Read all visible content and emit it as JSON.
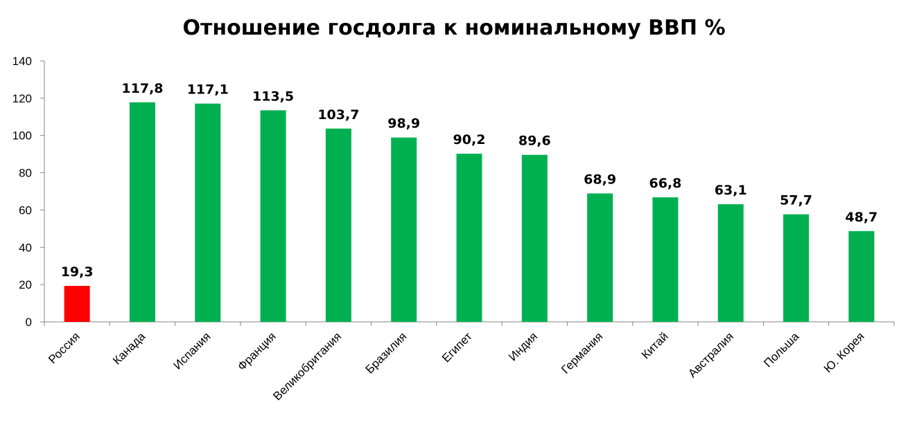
{
  "chart_data": {
    "type": "bar",
    "title": "Отношение госдолга к номинальному ВВП %",
    "categories": [
      "Россия",
      "Канада",
      "Испания",
      "Франция",
      "Великобритания",
      "Бразилия",
      "Египет",
      "Индия",
      "Германия",
      "Китай",
      "Австралия",
      "Польша",
      "Ю. Корея"
    ],
    "values": [
      19.3,
      117.8,
      117.1,
      113.5,
      103.7,
      98.9,
      90.2,
      89.6,
      68.9,
      66.8,
      63.1,
      57.7,
      48.7
    ],
    "data_labels": [
      "19,3",
      "117,8",
      "117,1",
      "113,5",
      "103,7",
      "98,9",
      "90,2",
      "89,6",
      "68,9",
      "66,8",
      "63,1",
      "57,7",
      "48,7"
    ],
    "colors": [
      "#ff0000",
      "#00b050",
      "#00b050",
      "#00b050",
      "#00b050",
      "#00b050",
      "#00b050",
      "#00b050",
      "#00b050",
      "#00b050",
      "#00b050",
      "#00b050",
      "#00b050"
    ],
    "ylim": [
      0,
      140
    ],
    "yticks": [
      0,
      20,
      40,
      60,
      80,
      100,
      120,
      140
    ],
    "grid": false,
    "legend": false,
    "xlabel": "",
    "ylabel": ""
  }
}
